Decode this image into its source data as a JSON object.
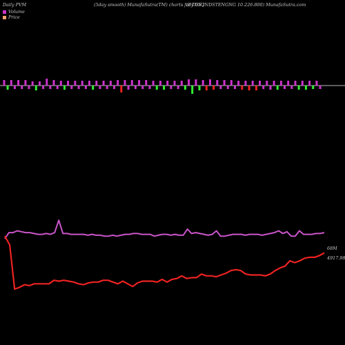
{
  "header": {
    "left": "Daily PVM",
    "center": "(5day smooth) MunafaSutra(TM) charts for DSIQ",
    "right": "(DJ US INDSTENGNG 10.226.800) MunafaSutra.com"
  },
  "legend": [
    {
      "label": "Volume",
      "color": "#cc33cc"
    },
    {
      "label": "Price",
      "color": "#f4a070"
    }
  ],
  "colors": {
    "background": "#000000",
    "volume_up": "#cc33cc",
    "volume_down": "#33ee33",
    "volume_red": "#ee2222",
    "volume_line": "#cc55cc",
    "price_line": "#ee2222",
    "baseline": "#bbbbbb"
  },
  "chart_data": [
    {
      "type": "bar",
      "title": "",
      "bars": [
        {
          "v": 8,
          "c": "up"
        },
        {
          "v": -6,
          "c": "down"
        },
        {
          "v": 8,
          "c": "up"
        },
        {
          "v": -5,
          "c": "up"
        },
        {
          "v": 8,
          "c": "up"
        },
        {
          "v": -5,
          "c": "up"
        },
        {
          "v": 8,
          "c": "up"
        },
        {
          "v": -5,
          "c": "up"
        },
        {
          "v": 6,
          "c": "up"
        },
        {
          "v": -7,
          "c": "down"
        },
        {
          "v": 6,
          "c": "up"
        },
        {
          "v": -5,
          "c": "up"
        },
        {
          "v": 10,
          "c": "up"
        },
        {
          "v": -5,
          "c": "up"
        },
        {
          "v": 8,
          "c": "up"
        },
        {
          "v": -5,
          "c": "up"
        },
        {
          "v": 7,
          "c": "up"
        },
        {
          "v": -6,
          "c": "down"
        },
        {
          "v": 7,
          "c": "up"
        },
        {
          "v": -5,
          "c": "up"
        },
        {
          "v": 7,
          "c": "up"
        },
        {
          "v": -5,
          "c": "up"
        },
        {
          "v": 7,
          "c": "up"
        },
        {
          "v": -5,
          "c": "up"
        },
        {
          "v": 7,
          "c": "up"
        },
        {
          "v": -6,
          "c": "down"
        },
        {
          "v": 7,
          "c": "up"
        },
        {
          "v": -5,
          "c": "up"
        },
        {
          "v": 7,
          "c": "up"
        },
        {
          "v": -5,
          "c": "up"
        },
        {
          "v": 7,
          "c": "up"
        },
        {
          "v": -5,
          "c": "up"
        },
        {
          "v": 8,
          "c": "up"
        },
        {
          "v": -10,
          "c": "red"
        },
        {
          "v": 8,
          "c": "up"
        },
        {
          "v": -6,
          "c": "up"
        },
        {
          "v": 8,
          "c": "up"
        },
        {
          "v": -5,
          "c": "up"
        },
        {
          "v": 8,
          "c": "up"
        },
        {
          "v": -5,
          "c": "up"
        },
        {
          "v": 8,
          "c": "up"
        },
        {
          "v": -5,
          "c": "up"
        },
        {
          "v": 7,
          "c": "up"
        },
        {
          "v": -6,
          "c": "down"
        },
        {
          "v": 7,
          "c": "up"
        },
        {
          "v": -6,
          "c": "down"
        },
        {
          "v": 7,
          "c": "up"
        },
        {
          "v": -5,
          "c": "up"
        },
        {
          "v": 7,
          "c": "up"
        },
        {
          "v": -5,
          "c": "up"
        },
        {
          "v": 7,
          "c": "up"
        },
        {
          "v": -6,
          "c": "down"
        },
        {
          "v": 9,
          "c": "up"
        },
        {
          "v": -12,
          "c": "down"
        },
        {
          "v": 9,
          "c": "up"
        },
        {
          "v": -7,
          "c": "down"
        },
        {
          "v": 8,
          "c": "up"
        },
        {
          "v": -7,
          "c": "red"
        },
        {
          "v": 9,
          "c": "up"
        },
        {
          "v": -6,
          "c": "red"
        },
        {
          "v": 8,
          "c": "up"
        },
        {
          "v": -5,
          "c": "up"
        },
        {
          "v": 8,
          "c": "up"
        },
        {
          "v": -5,
          "c": "up"
        },
        {
          "v": 8,
          "c": "up"
        },
        {
          "v": -5,
          "c": "up"
        },
        {
          "v": 7,
          "c": "up"
        },
        {
          "v": -6,
          "c": "red"
        },
        {
          "v": 7,
          "c": "up"
        },
        {
          "v": -7,
          "c": "red"
        },
        {
          "v": 7,
          "c": "up"
        },
        {
          "v": -7,
          "c": "red"
        },
        {
          "v": 7,
          "c": "up"
        },
        {
          "v": -5,
          "c": "up"
        },
        {
          "v": 7,
          "c": "up"
        },
        {
          "v": -6,
          "c": "up"
        },
        {
          "v": 7,
          "c": "up"
        },
        {
          "v": -6,
          "c": "down"
        },
        {
          "v": 7,
          "c": "up"
        },
        {
          "v": -5,
          "c": "up"
        },
        {
          "v": 7,
          "c": "up"
        },
        {
          "v": -5,
          "c": "up"
        },
        {
          "v": 7,
          "c": "up"
        },
        {
          "v": -6,
          "c": "down"
        },
        {
          "v": 7,
          "c": "up"
        },
        {
          "v": -6,
          "c": "down"
        },
        {
          "v": 7,
          "c": "up"
        },
        {
          "v": -5,
          "c": "down"
        },
        {
          "v": 7,
          "c": "up"
        },
        {
          "v": -5,
          "c": "up"
        }
      ]
    },
    {
      "type": "line",
      "title": "",
      "series": [
        {
          "label": "68M",
          "role": "volume",
          "values": [
            57,
            64,
            64,
            66,
            65,
            64,
            64,
            63,
            62,
            62,
            63,
            62,
            64,
            78,
            63,
            63,
            62,
            62,
            62,
            62,
            61,
            62,
            61,
            61,
            60,
            60,
            61,
            60,
            61,
            62,
            62,
            63,
            63,
            62,
            62,
            62,
            60,
            61,
            62,
            62,
            61,
            62,
            61,
            61,
            68,
            63,
            64,
            63,
            62,
            61,
            62,
            66,
            60,
            60,
            61,
            62,
            62,
            62,
            61,
            62,
            62,
            62,
            61,
            62,
            63,
            64,
            66,
            63,
            65,
            60,
            60,
            66,
            62,
            62,
            62,
            63,
            63,
            64
          ]
        },
        {
          "label": "4917.98",
          "role": "price",
          "values": [
            60,
            50,
            0,
            2,
            5,
            4,
            6,
            6,
            6,
            6,
            10,
            9,
            10,
            9,
            8,
            6,
            5,
            7,
            8,
            8,
            10,
            10,
            8,
            6,
            9,
            6,
            3,
            7,
            9,
            9,
            9,
            8,
            11,
            8,
            11,
            12,
            15,
            12,
            13,
            13,
            17,
            15,
            15,
            14,
            16,
            18,
            21,
            22,
            21,
            17,
            16,
            16,
            16,
            15,
            17,
            21,
            24,
            26,
            32,
            30,
            32,
            35,
            36,
            36,
            38,
            41
          ]
        }
      ]
    }
  ]
}
